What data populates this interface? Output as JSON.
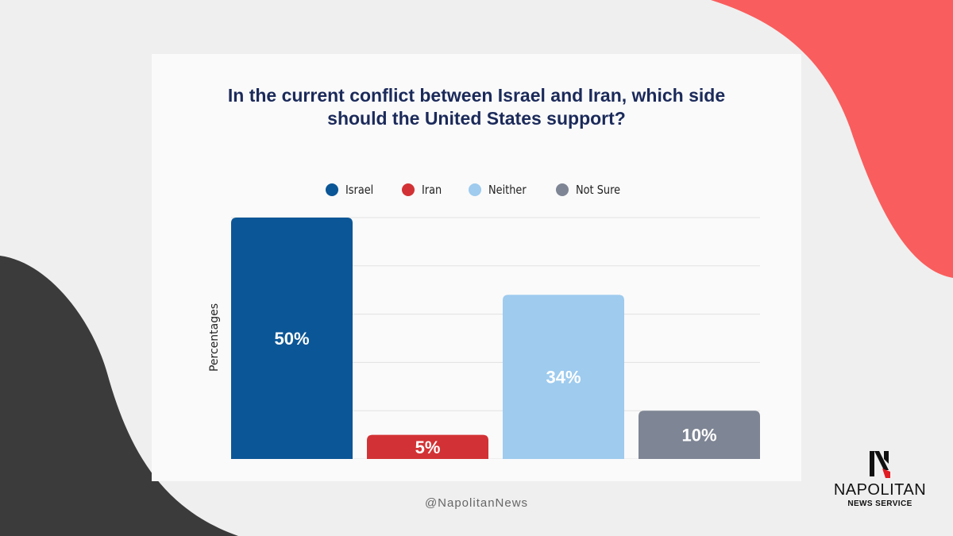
{
  "colors": {
    "background": "#efefef",
    "accent_red": "#fa5d5d",
    "dark": "#3b3b3b",
    "title": "#1b2a5a"
  },
  "chart_data": {
    "type": "bar",
    "title": "In the current conflict between Israel and Iran, which side should the United States support?",
    "ylabel": "Percentages",
    "xlabel": "",
    "ylim": [
      0,
      50
    ],
    "grid": true,
    "legend_position": "top",
    "categories": [
      "Israel",
      "Iran",
      "Neither",
      "Not Sure"
    ],
    "values": [
      50,
      5,
      34,
      10
    ],
    "data_labels": [
      "50%",
      "5%",
      "34%",
      "10%"
    ],
    "colors": [
      "#0b5696",
      "#d23235",
      "#9ecbee",
      "#7e8594"
    ]
  },
  "footer": {
    "handle": "@NapolitanNews"
  },
  "logo": {
    "name": "NAPOLITAN",
    "subtitle": "NEWS SERVICE",
    "icon": "napolitan-n-icon"
  }
}
